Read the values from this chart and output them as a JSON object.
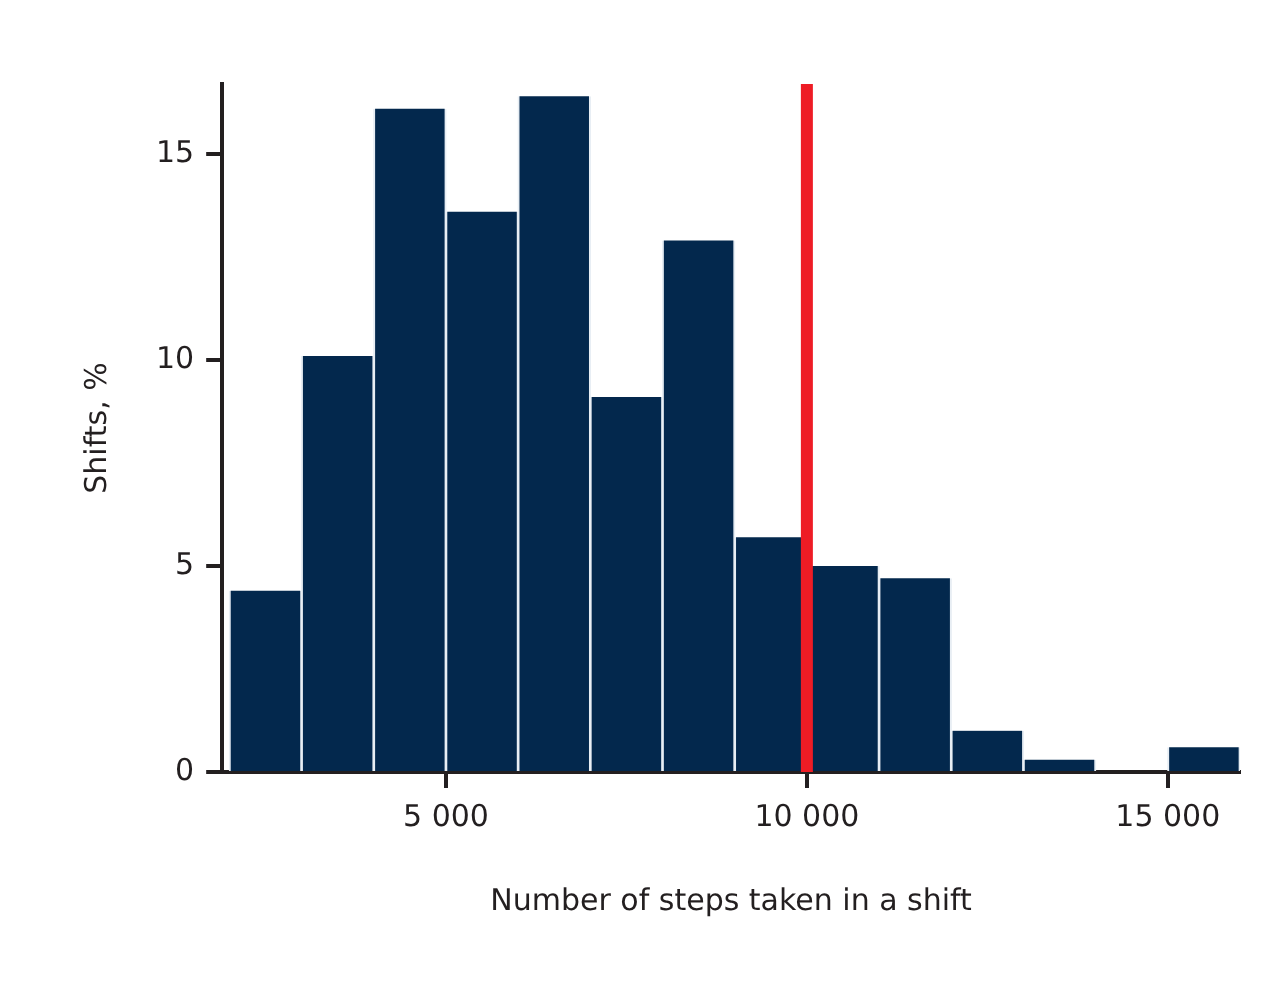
{
  "chart_data": {
    "type": "histogram",
    "xlabel": "Number of steps taken in a shift",
    "ylabel": "Shifts, %",
    "bins": [
      2000,
      3000,
      4000,
      5000,
      6000,
      7000,
      8000,
      9000,
      10000,
      11000,
      12000,
      13000,
      14000,
      15000,
      16000
    ],
    "values": [
      4.4,
      10.1,
      16.1,
      13.6,
      16.4,
      9.1,
      12.9,
      5.7,
      5.0,
      4.7,
      1.0,
      0.3,
      0,
      0.6
    ],
    "color": "#03284d",
    "xlim": [
      1900,
      16000
    ],
    "xticks": [
      {
        "value": 5000,
        "label": "5 000"
      },
      {
        "value": 10000,
        "label": "10 000"
      },
      {
        "value": 15000,
        "label": "15 000"
      }
    ],
    "ylim": [
      0,
      16.7
    ],
    "yticks": [
      0,
      5,
      10,
      15
    ],
    "ref_lines": [
      {
        "axis": "x",
        "value": 10000,
        "color": "#ee1c25"
      }
    ],
    "grid": false,
    "legend": false
  }
}
